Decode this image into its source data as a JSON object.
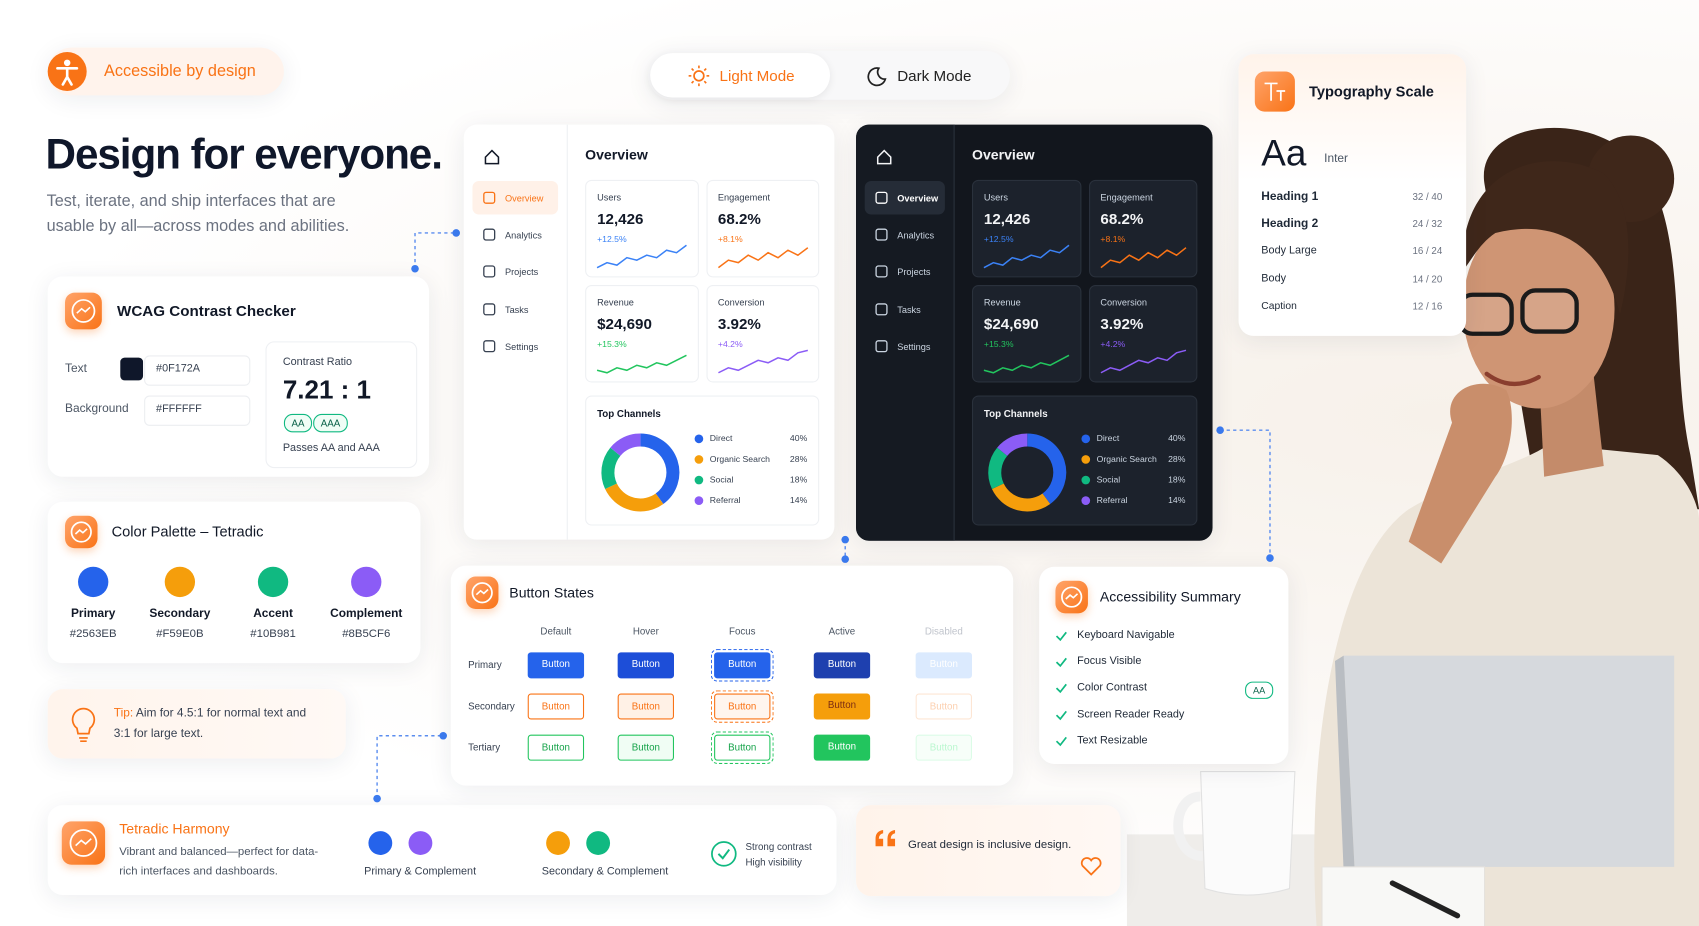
{
  "badge": "Accessible by design",
  "mode_toggle": {
    "light": "Light Mode",
    "dark": "Dark Mode"
  },
  "hero": {
    "title": "Design for everyone.",
    "subtitle": "Test, iterate, and ship interfaces that are usable by all—across modes and abilities."
  },
  "wcag": {
    "title": "WCAG Contrast Checker",
    "text_label": "Text",
    "text_value": "#0F172A",
    "background_label": "Background",
    "background_value": "#FFFFFF",
    "ratio_label": "Contrast Ratio",
    "ratio": "7.21 : 1",
    "badges": [
      "AA",
      "AAA"
    ],
    "result": "Passes AA and AAA"
  },
  "palette": {
    "title": "Color Palette – Tetradic",
    "colors": [
      {
        "name": "Primary",
        "hex": "#2563EB"
      },
      {
        "name": "Secondary",
        "hex": "#F59E0B"
      },
      {
        "name": "Accent",
        "hex": "#10B981"
      },
      {
        "name": "Complement",
        "hex": "#8B5CF6"
      }
    ]
  },
  "tip": {
    "label": "Tip:",
    "text": "Aim for 4.5:1 for normal text and 3:1 for large text."
  },
  "harmony": {
    "title": "Tetradic Harmony",
    "text": "Vibrant and balanced—perfect for data-rich interfaces and dashboards.",
    "pairs": [
      "Primary & Complement",
      "Secondary & Complement"
    ],
    "checks": [
      "Strong contrast",
      "High visibility"
    ]
  },
  "dashboard": {
    "nav": [
      "Overview",
      "Analytics",
      "Projects",
      "Tasks",
      "Settings"
    ],
    "title": "Overview",
    "kpis": [
      {
        "label": "Users",
        "value": "12,426",
        "change": "+12.5%"
      },
      {
        "label": "Engagement",
        "value": "68.2%",
        "change": "+8.1%"
      },
      {
        "label": "Revenue",
        "value": "$24,690",
        "change": "+15.3%"
      },
      {
        "label": "Conversion",
        "value": "3.92%",
        "change": "+4.2%"
      }
    ],
    "channels": {
      "type": "pie",
      "title": "Top Channels",
      "categories": [
        "Direct",
        "Organic Search",
        "Social",
        "Referral"
      ],
      "values": [
        40,
        28,
        18,
        14
      ],
      "value_labels": [
        "40%",
        "28%",
        "18%",
        "14%"
      ],
      "colors": [
        "#2563EB",
        "#F59E0B",
        "#10B981",
        "#8B5CF6"
      ]
    }
  },
  "button_states": {
    "title": "Button States",
    "states": [
      "Default",
      "Hover",
      "Focus",
      "Active",
      "Disabled"
    ],
    "rows": [
      "Primary",
      "Secondary",
      "Tertiary"
    ],
    "button_label": "Button"
  },
  "typography": {
    "title": "Typography Scale",
    "sample": "Aa",
    "font": "Inter",
    "styles": [
      {
        "name": "Heading 1",
        "size": "32 / 40"
      },
      {
        "name": "Heading 2",
        "size": "24 / 32"
      },
      {
        "name": "Body Large",
        "size": "16 / 24"
      },
      {
        "name": "Body",
        "size": "14 / 20"
      },
      {
        "name": "Caption",
        "size": "12 / 16"
      }
    ]
  },
  "summary": {
    "title": "Accessibility Summary",
    "items": [
      "Keyboard Navigable",
      "Focus Visible",
      "Color Contrast",
      "Screen Reader Ready",
      "Text Resizable"
    ],
    "badge": "AA"
  },
  "quote": "Great design is inclusive design."
}
